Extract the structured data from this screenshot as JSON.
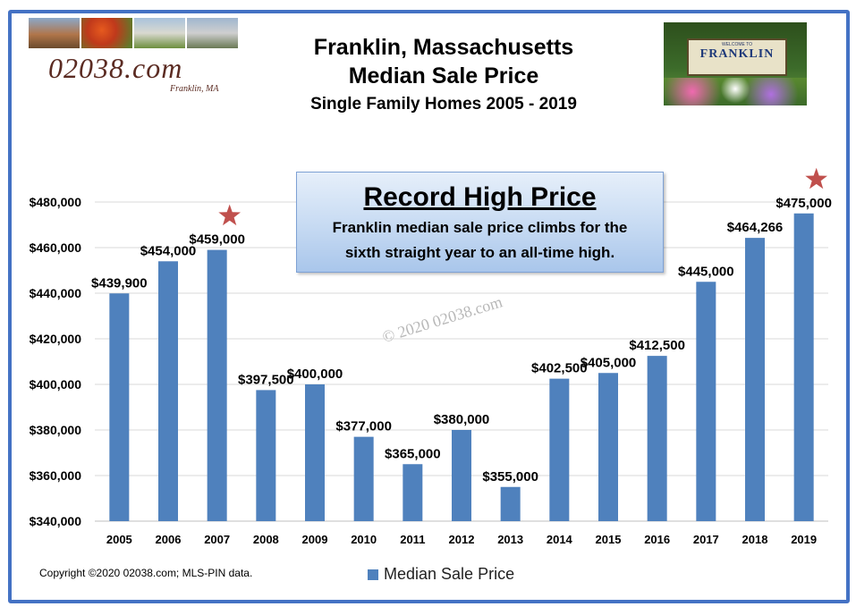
{
  "header": {
    "logo_text": "02038.com",
    "logo_sub": "Franklin, MA",
    "title_line1": "Franklin, Massachusetts",
    "title_line2": "Median Sale Price",
    "title_line3": "Single Family Homes 2005 - 2019"
  },
  "sign": {
    "welcome": "WELCOME TO",
    "name": "FRANKLIN"
  },
  "callout": {
    "heading": "Record High Price",
    "body_line1": "Franklin median sale price climbs for the",
    "body_line2": "sixth straight year to an all-time high."
  },
  "watermark": "© 2020 02038.com",
  "footer": {
    "copyright": "Copyright ©2020 02038.com; MLS-PIN data."
  },
  "colors": {
    "bar": "#4f81bd",
    "star": "#c0504d",
    "frame": "#4472c4",
    "grid": "#d9d9d9"
  },
  "chart_data": {
    "type": "bar",
    "categories": [
      "2005",
      "2006",
      "2007",
      "2008",
      "2009",
      "2010",
      "2011",
      "2012",
      "2013",
      "2014",
      "2015",
      "2016",
      "2017",
      "2018",
      "2019"
    ],
    "series": [
      {
        "name": "Median Sale Price",
        "values": [
          439900,
          454000,
          459000,
          397500,
          400000,
          377000,
          365000,
          380000,
          355000,
          402500,
          405000,
          412500,
          445000,
          464266,
          475000
        ]
      }
    ],
    "data_labels": [
      "$439,900",
      "$454,000",
      "$459,000",
      "$397,500",
      "$400,000",
      "$377,000",
      "$365,000",
      "$380,000",
      "$355,000",
      "$402,500",
      "$405,000",
      "$412,500",
      "$445,000",
      "$464,266",
      "$475,000"
    ],
    "y_ticks": [
      340000,
      360000,
      380000,
      400000,
      420000,
      440000,
      460000,
      480000
    ],
    "y_tick_labels": [
      "$340,000",
      "$360,000",
      "$380,000",
      "$400,000",
      "$420,000",
      "$440,000",
      "$460,000",
      "$480,000"
    ],
    "ylim": [
      340000,
      480000
    ],
    "starred_categories": [
      "2007",
      "2019"
    ],
    "grid": true,
    "legend_position": "bottom"
  }
}
